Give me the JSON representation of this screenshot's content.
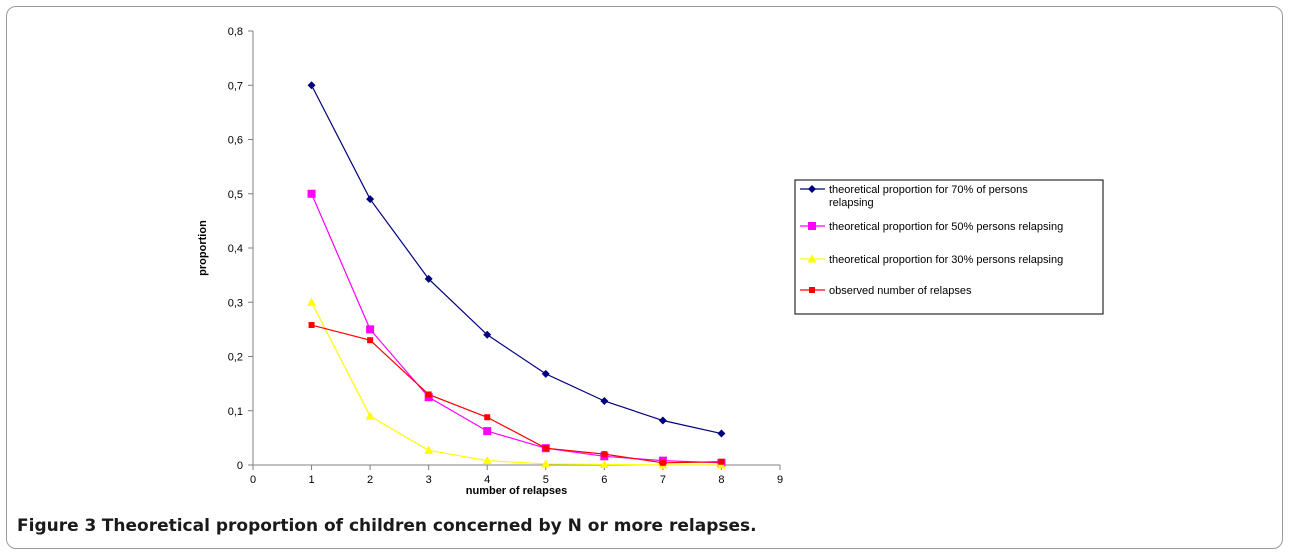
{
  "chart_data": {
    "type": "line",
    "xlabel": "number of relapses",
    "ylabel": "proportion",
    "xlim": [
      0,
      9
    ],
    "ylim": [
      0,
      0.8
    ],
    "x_ticks": [
      "0",
      "1",
      "2",
      "3",
      "4",
      "5",
      "6",
      "7",
      "8",
      "9"
    ],
    "y_ticks": [
      "0",
      "0,1",
      "0,2",
      "0,3",
      "0,4",
      "0,5",
      "0,6",
      "0,7",
      "0,8"
    ],
    "grid": false,
    "legend_position": "right",
    "series": [
      {
        "name": "theoretical proportion for 70% of persons relapsing",
        "color": "#00007f",
        "marker": "diamond",
        "x": [
          1,
          2,
          3,
          4,
          5,
          6,
          7,
          8
        ],
        "y": [
          0.7,
          0.49,
          0.343,
          0.24,
          0.168,
          0.118,
          0.082,
          0.058
        ]
      },
      {
        "name": "theoretical proportion for 50% persons relapsing",
        "color": "#ff00ff",
        "marker": "square",
        "x": [
          1,
          2,
          3,
          4,
          5,
          6,
          7,
          8
        ],
        "y": [
          0.5,
          0.25,
          0.125,
          0.0625,
          0.031,
          0.016,
          0.008,
          0.004
        ]
      },
      {
        "name": "theoretical proportion for 30% persons relapsing",
        "color": "#ffff00",
        "marker": "triangle",
        "x": [
          1,
          2,
          3,
          4,
          5,
          6,
          7,
          8
        ],
        "y": [
          0.3,
          0.09,
          0.027,
          0.008,
          0.002,
          0.001,
          0.0,
          0.0
        ]
      },
      {
        "name": "observed number of relapses",
        "color": "#ff0000",
        "marker": "small-square",
        "x": [
          1,
          2,
          3,
          4,
          5,
          6,
          7,
          8
        ],
        "y": [
          0.258,
          0.23,
          0.13,
          0.088,
          0.031,
          0.02,
          0.004,
          0.006
        ]
      }
    ]
  },
  "caption": {
    "figure_label": "Figure 3",
    "text": "Theoretical proportion of children concerned by N or more relapses."
  }
}
